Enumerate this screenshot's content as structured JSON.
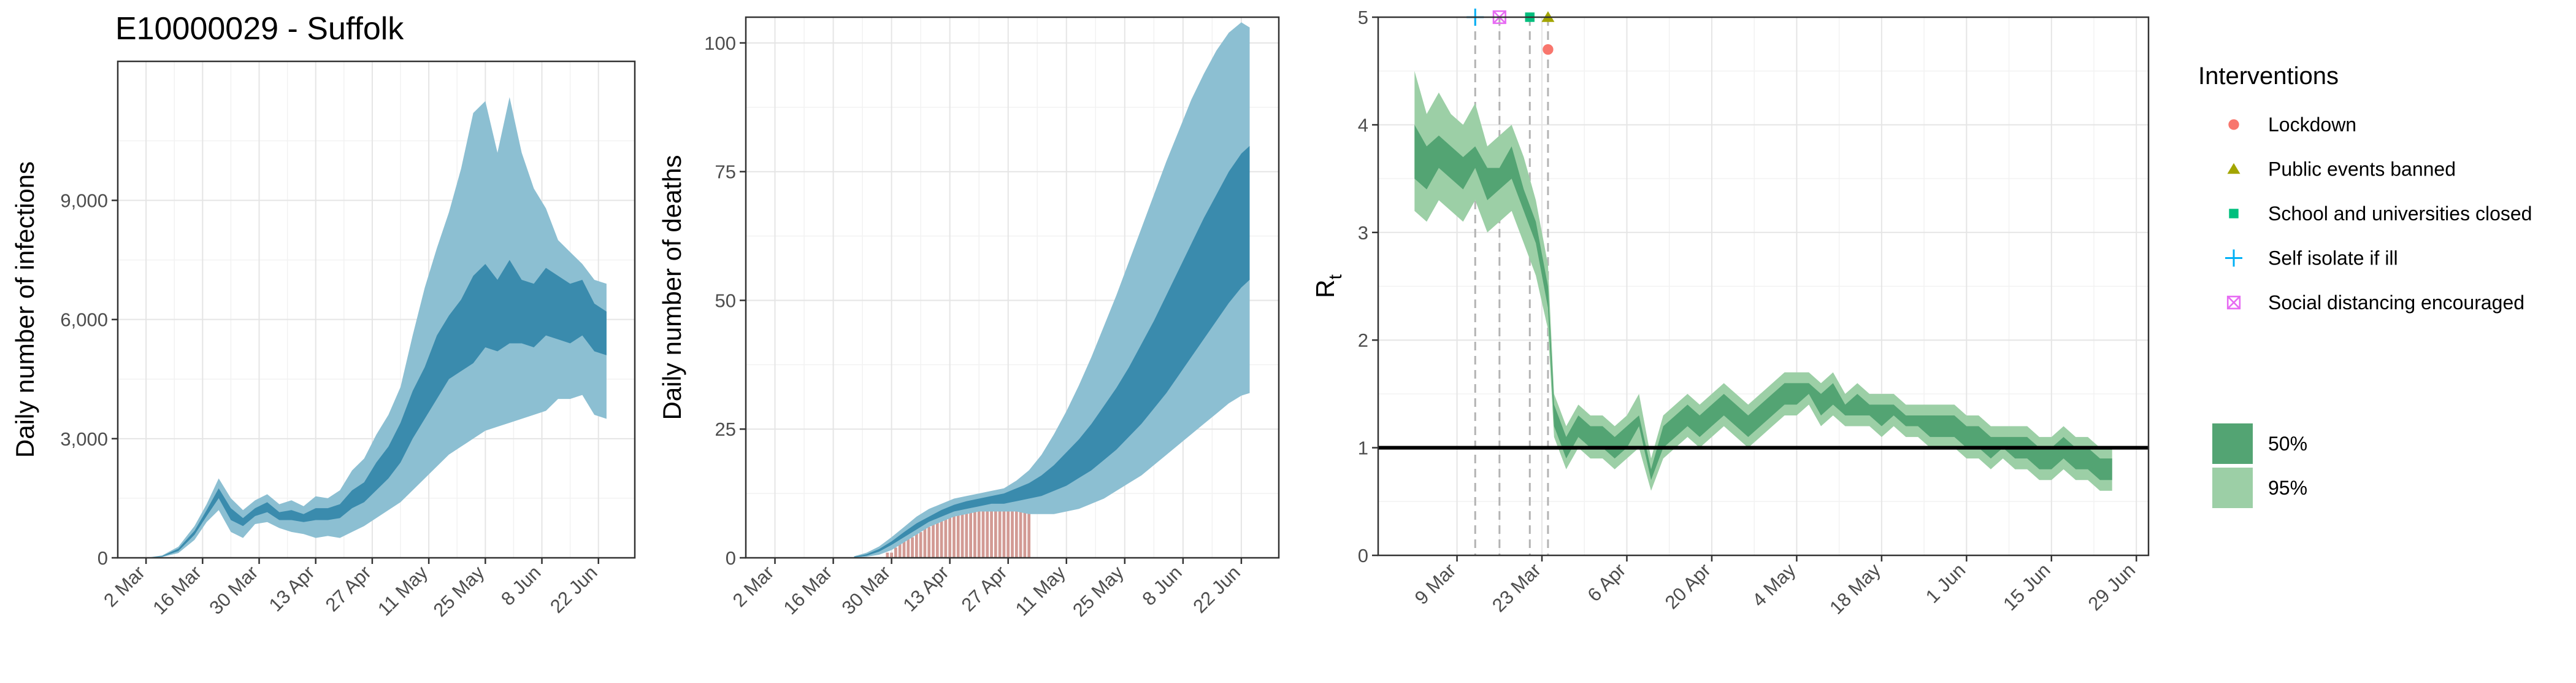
{
  "figure": {
    "title": "E10000029 - Suffolk"
  },
  "colors": {
    "ci50": "#3a8bad",
    "ci95": "#8cbfd2",
    "bar": "#d29a94",
    "rt50": "#53a473",
    "rt95": "#9ccfa6",
    "lockdown": "#f8766d",
    "public_events": "#a3a500",
    "school": "#00bf7d",
    "self_isolate": "#00b0f6",
    "social_distancing": "#e76bf3"
  },
  "chart_data": [
    {
      "type": "area",
      "id": "infections",
      "ylabel": "Daily number of infections",
      "xlabel": "",
      "ylim": [
        0,
        12500
      ],
      "yticks": [
        0,
        3000,
        6000,
        9000
      ],
      "ytick_labels": [
        "0",
        "3,000",
        "6,000",
        "9,000"
      ],
      "xticks": [
        "2020-03-02",
        "2020-03-16",
        "2020-03-30",
        "2020-04-13",
        "2020-04-27",
        "2020-05-11",
        "2020-05-25",
        "2020-06-08",
        "2020-06-22"
      ],
      "xtick_labels": [
        "2 Mar",
        "16 Mar",
        "30 Mar",
        "13 Apr",
        "27 Apr",
        "11 May",
        "25 May",
        "8 Jun",
        "22 Jun"
      ],
      "xlim": [
        "2020-02-24",
        "2020-07-01"
      ],
      "series": [
        {
          "x": [
            "2020-03-02",
            "2020-03-06",
            "2020-03-10",
            "2020-03-14",
            "2020-03-17",
            "2020-03-20",
            "2020-03-23",
            "2020-03-26",
            "2020-03-29",
            "2020-04-01",
            "2020-04-04",
            "2020-04-07",
            "2020-04-10",
            "2020-04-13",
            "2020-04-16",
            "2020-04-19",
            "2020-04-22",
            "2020-04-25",
            "2020-04-28",
            "2020-05-01",
            "2020-05-04",
            "2020-05-07",
            "2020-05-10",
            "2020-05-13",
            "2020-05-16",
            "2020-05-19",
            "2020-05-22",
            "2020-05-25",
            "2020-05-28",
            "2020-05-31",
            "2020-06-03",
            "2020-06-06",
            "2020-06-09",
            "2020-06-12",
            "2020-06-15",
            "2020-06-18",
            "2020-06-21",
            "2020-06-24"
          ],
          "low95": [
            0,
            20,
            120,
            450,
            900,
            1200,
            650,
            500,
            850,
            900,
            750,
            650,
            600,
            500,
            550,
            500,
            650,
            800,
            1000,
            1200,
            1400,
            1700,
            2000,
            2300,
            2600,
            2800,
            3000,
            3200,
            3300,
            3400,
            3500,
            3600,
            3700,
            4000,
            4000,
            4100,
            3600,
            3500
          ],
          "high95": [
            0,
            60,
            280,
            800,
            1350,
            2000,
            1500,
            1200,
            1450,
            1600,
            1350,
            1450,
            1300,
            1550,
            1500,
            1700,
            2200,
            2500,
            3100,
            3600,
            4300,
            5600,
            6800,
            7800,
            8700,
            9800,
            11200,
            11500,
            10200,
            11600,
            10200,
            9300,
            8800,
            8000,
            7700,
            7400,
            7000,
            6900
          ],
          "low50": [
            0,
            30,
            170,
            580,
            1050,
            1500,
            950,
            800,
            1050,
            1150,
            950,
            950,
            900,
            950,
            950,
            1000,
            1250,
            1400,
            1700,
            2000,
            2400,
            3000,
            3500,
            4000,
            4500,
            4700,
            4900,
            5300,
            5200,
            5400,
            5400,
            5300,
            5600,
            5500,
            5400,
            5600,
            5200,
            5100
          ],
          "high50": [
            0,
            45,
            230,
            680,
            1200,
            1750,
            1250,
            1000,
            1250,
            1400,
            1150,
            1200,
            1100,
            1250,
            1250,
            1350,
            1700,
            1900,
            2400,
            2800,
            3400,
            4200,
            4800,
            5600,
            6100,
            6500,
            7100,
            7400,
            7000,
            7500,
            7000,
            6900,
            7300,
            7100,
            6900,
            7000,
            6400,
            6200
          ]
        }
      ]
    },
    {
      "type": "area",
      "id": "deaths",
      "ylabel": "Daily number of deaths",
      "xlabel": "",
      "ylim": [
        0,
        105
      ],
      "yticks": [
        0,
        25,
        50,
        75,
        100
      ],
      "ytick_labels": [
        "0",
        "25",
        "50",
        "75",
        "100"
      ],
      "xticks": [
        "2020-03-02",
        "2020-03-16",
        "2020-03-30",
        "2020-04-13",
        "2020-04-27",
        "2020-05-11",
        "2020-05-25",
        "2020-06-08",
        "2020-06-22"
      ],
      "xtick_labels": [
        "2 Mar",
        "16 Mar",
        "30 Mar",
        "13 Apr",
        "27 Apr",
        "11 May",
        "25 May",
        "8 Jun",
        "22 Jun"
      ],
      "xlim": [
        "2020-02-24",
        "2020-07-01"
      ],
      "bars": {
        "x": [
          "2020-03-29",
          "2020-03-30",
          "2020-03-31",
          "2020-04-01",
          "2020-04-02",
          "2020-04-03",
          "2020-04-04",
          "2020-04-05",
          "2020-04-06",
          "2020-04-07",
          "2020-04-08",
          "2020-04-09",
          "2020-04-10",
          "2020-04-11",
          "2020-04-12",
          "2020-04-13",
          "2020-04-14",
          "2020-04-15",
          "2020-04-16",
          "2020-04-17",
          "2020-04-18",
          "2020-04-19",
          "2020-04-20",
          "2020-04-21",
          "2020-04-22",
          "2020-04-23",
          "2020-04-24",
          "2020-04-25",
          "2020-04-26",
          "2020-04-27",
          "2020-04-28",
          "2020-04-29",
          "2020-04-30",
          "2020-05-01",
          "2020-05-02"
        ],
        "values": [
          1,
          1,
          2,
          3,
          4,
          5,
          4,
          6,
          5,
          7,
          6,
          8,
          7,
          10,
          8,
          9,
          10,
          9,
          10,
          11,
          9,
          10,
          11,
          10,
          9,
          11,
          10,
          9,
          10,
          11,
          10,
          9,
          10,
          10,
          10
        ]
      },
      "series": [
        {
          "x": [
            "2020-03-21",
            "2020-03-24",
            "2020-03-27",
            "2020-03-30",
            "2020-04-02",
            "2020-04-05",
            "2020-04-08",
            "2020-04-11",
            "2020-04-14",
            "2020-04-17",
            "2020-04-20",
            "2020-04-23",
            "2020-04-26",
            "2020-04-29",
            "2020-05-02",
            "2020-05-05",
            "2020-05-08",
            "2020-05-11",
            "2020-05-14",
            "2020-05-17",
            "2020-05-20",
            "2020-05-23",
            "2020-05-26",
            "2020-05-29",
            "2020-06-01",
            "2020-06-04",
            "2020-06-07",
            "2020-06-10",
            "2020-06-13",
            "2020-06-16",
            "2020-06-19",
            "2020-06-22",
            "2020-06-24"
          ],
          "low95": [
            0,
            0.2,
            0.6,
            1.5,
            3,
            4.5,
            6,
            7,
            8,
            8.5,
            9,
            9,
            9,
            9,
            8.5,
            8.5,
            8.5,
            9,
            9.5,
            10.5,
            11.5,
            13,
            14.5,
            16,
            18,
            20,
            22,
            24,
            26,
            28,
            30,
            31.5,
            32
          ],
          "high95": [
            0.3,
            1,
            2.2,
            4,
            6,
            8,
            9.5,
            10.5,
            11.5,
            12,
            12.5,
            13,
            13.5,
            15,
            17,
            20,
            24,
            28.5,
            33.5,
            39,
            45,
            51,
            57.5,
            64,
            70.5,
            77,
            83,
            89,
            94,
            98.5,
            102,
            104,
            103
          ],
          "low50": [
            0.1,
            0.4,
            1.2,
            2.5,
            4,
            5.5,
            7,
            8,
            9,
            9.5,
            10,
            10.5,
            10.5,
            11,
            11.5,
            12,
            13,
            14,
            15.5,
            17,
            19,
            21,
            23.5,
            26,
            29,
            32,
            35.5,
            39,
            42.5,
            46,
            49.5,
            52.5,
            54
          ],
          "high50": [
            0.2,
            0.7,
            1.7,
            3.2,
            5,
            6.7,
            8,
            9.3,
            10.3,
            11,
            11.5,
            12,
            12.5,
            13.5,
            14.5,
            16,
            18,
            20.5,
            23,
            26,
            29.5,
            33,
            37,
            41.5,
            46,
            51,
            56,
            61,
            66,
            70.5,
            75,
            78.5,
            80
          ]
        }
      ]
    },
    {
      "type": "area",
      "id": "rt",
      "ylabel": "R",
      "ylabel_sub": "t",
      "xlabel": "",
      "ylim": [
        0,
        5
      ],
      "yticks": [
        0,
        1,
        2,
        3,
        4,
        5
      ],
      "ytick_labels": [
        "0",
        "1",
        "2",
        "3",
        "4",
        "5"
      ],
      "xticks": [
        "2020-03-09",
        "2020-03-23",
        "2020-04-06",
        "2020-04-20",
        "2020-05-04",
        "2020-05-18",
        "2020-06-01",
        "2020-06-15",
        "2020-06-29"
      ],
      "xtick_labels": [
        "9 Mar",
        "23 Mar",
        "6 Apr",
        "20 Apr",
        "4 May",
        "18 May",
        "1 Jun",
        "15 Jun",
        "29 Jun"
      ],
      "xlim": [
        "2020-02-25",
        "2020-07-01"
      ],
      "reference_line": 1,
      "series": [
        {
          "x": [
            "2020-03-02",
            "2020-03-04",
            "2020-03-06",
            "2020-03-08",
            "2020-03-10",
            "2020-03-12",
            "2020-03-14",
            "2020-03-16",
            "2020-03-18",
            "2020-03-20",
            "2020-03-22",
            "2020-03-24",
            "2020-03-25",
            "2020-03-27",
            "2020-03-29",
            "2020-03-31",
            "2020-04-02",
            "2020-04-04",
            "2020-04-06",
            "2020-04-08",
            "2020-04-10",
            "2020-04-12",
            "2020-04-14",
            "2020-04-16",
            "2020-04-18",
            "2020-04-20",
            "2020-04-22",
            "2020-04-24",
            "2020-04-26",
            "2020-04-28",
            "2020-04-30",
            "2020-05-02",
            "2020-05-04",
            "2020-05-06",
            "2020-05-08",
            "2020-05-10",
            "2020-05-12",
            "2020-05-14",
            "2020-05-16",
            "2020-05-18",
            "2020-05-20",
            "2020-05-22",
            "2020-05-24",
            "2020-05-26",
            "2020-05-28",
            "2020-05-30",
            "2020-06-01",
            "2020-06-03",
            "2020-06-05",
            "2020-06-07",
            "2020-06-09",
            "2020-06-11",
            "2020-06-13",
            "2020-06-15",
            "2020-06-17",
            "2020-06-19",
            "2020-06-21",
            "2020-06-23",
            "2020-06-25"
          ],
          "low95": [
            3.2,
            3.1,
            3.3,
            3.2,
            3.1,
            3.3,
            3.0,
            3.1,
            3.2,
            2.9,
            2.6,
            2.1,
            1.1,
            0.8,
            1.0,
            0.9,
            0.9,
            0.8,
            0.9,
            1.0,
            0.6,
            0.9,
            1.0,
            1.1,
            1.0,
            1.1,
            1.2,
            1.1,
            1.0,
            1.1,
            1.2,
            1.3,
            1.3,
            1.4,
            1.2,
            1.3,
            1.2,
            1.2,
            1.2,
            1.1,
            1.2,
            1.1,
            1.1,
            1.0,
            1.0,
            1.0,
            0.9,
            0.9,
            0.8,
            0.9,
            0.8,
            0.8,
            0.7,
            0.7,
            0.8,
            0.7,
            0.7,
            0.6,
            0.6
          ],
          "high95": [
            4.5,
            4.1,
            4.3,
            4.1,
            4.0,
            4.2,
            3.8,
            3.9,
            4.0,
            3.7,
            3.3,
            2.7,
            1.5,
            1.2,
            1.4,
            1.3,
            1.3,
            1.2,
            1.3,
            1.5,
            0.9,
            1.3,
            1.4,
            1.5,
            1.4,
            1.5,
            1.6,
            1.5,
            1.4,
            1.5,
            1.6,
            1.7,
            1.7,
            1.7,
            1.6,
            1.7,
            1.5,
            1.6,
            1.5,
            1.5,
            1.5,
            1.4,
            1.4,
            1.4,
            1.4,
            1.4,
            1.3,
            1.3,
            1.2,
            1.2,
            1.2,
            1.2,
            1.1,
            1.1,
            1.2,
            1.1,
            1.1,
            1.0,
            1.0
          ],
          "low50": [
            3.5,
            3.4,
            3.6,
            3.5,
            3.4,
            3.6,
            3.3,
            3.4,
            3.5,
            3.2,
            2.9,
            2.3,
            1.2,
            0.9,
            1.1,
            1.0,
            1.0,
            0.9,
            1.0,
            1.2,
            0.7,
            1.0,
            1.1,
            1.2,
            1.1,
            1.2,
            1.3,
            1.2,
            1.1,
            1.2,
            1.3,
            1.4,
            1.4,
            1.5,
            1.3,
            1.4,
            1.3,
            1.3,
            1.3,
            1.2,
            1.3,
            1.2,
            1.2,
            1.1,
            1.1,
            1.1,
            1.0,
            1.0,
            0.9,
            1.0,
            0.9,
            0.9,
            0.8,
            0.8,
            0.9,
            0.8,
            0.8,
            0.7,
            0.7
          ],
          "high50": [
            4.0,
            3.8,
            3.9,
            3.8,
            3.7,
            3.8,
            3.6,
            3.6,
            3.8,
            3.4,
            3.1,
            2.5,
            1.4,
            1.1,
            1.3,
            1.2,
            1.2,
            1.1,
            1.2,
            1.3,
            0.8,
            1.2,
            1.3,
            1.4,
            1.3,
            1.4,
            1.5,
            1.4,
            1.3,
            1.4,
            1.5,
            1.6,
            1.6,
            1.6,
            1.5,
            1.6,
            1.4,
            1.5,
            1.4,
            1.4,
            1.4,
            1.3,
            1.3,
            1.3,
            1.3,
            1.3,
            1.2,
            1.2,
            1.1,
            1.1,
            1.1,
            1.1,
            1.0,
            1.0,
            1.1,
            1.0,
            1.0,
            0.9,
            0.9
          ]
        }
      ],
      "interventions": [
        {
          "name": "Self isolate if ill",
          "date": "2020-03-12",
          "marker": "cross",
          "y": 5.0
        },
        {
          "name": "Social distancing encouraged",
          "date": "2020-03-16",
          "marker": "boxx",
          "y": 5.0
        },
        {
          "name": "School and universities closed",
          "date": "2020-03-21",
          "marker": "square",
          "y": 5.0
        },
        {
          "name": "Public events banned",
          "date": "2020-03-24",
          "marker": "triangle",
          "y": 5.0
        },
        {
          "name": "Lockdown",
          "date": "2020-03-24",
          "marker": "circle",
          "y": 4.7
        }
      ]
    }
  ],
  "legend": {
    "interventions_title": "Interventions",
    "interventions": [
      {
        "label": "Lockdown",
        "marker": "circle"
      },
      {
        "label": "Public events banned",
        "marker": "triangle"
      },
      {
        "label": "School and universities closed",
        "marker": "square"
      },
      {
        "label": "Self isolate if ill",
        "marker": "cross"
      },
      {
        "label": "Social distancing encouraged",
        "marker": "boxx"
      }
    ],
    "intervals": [
      {
        "label": "50%"
      },
      {
        "label": "95%"
      }
    ]
  }
}
